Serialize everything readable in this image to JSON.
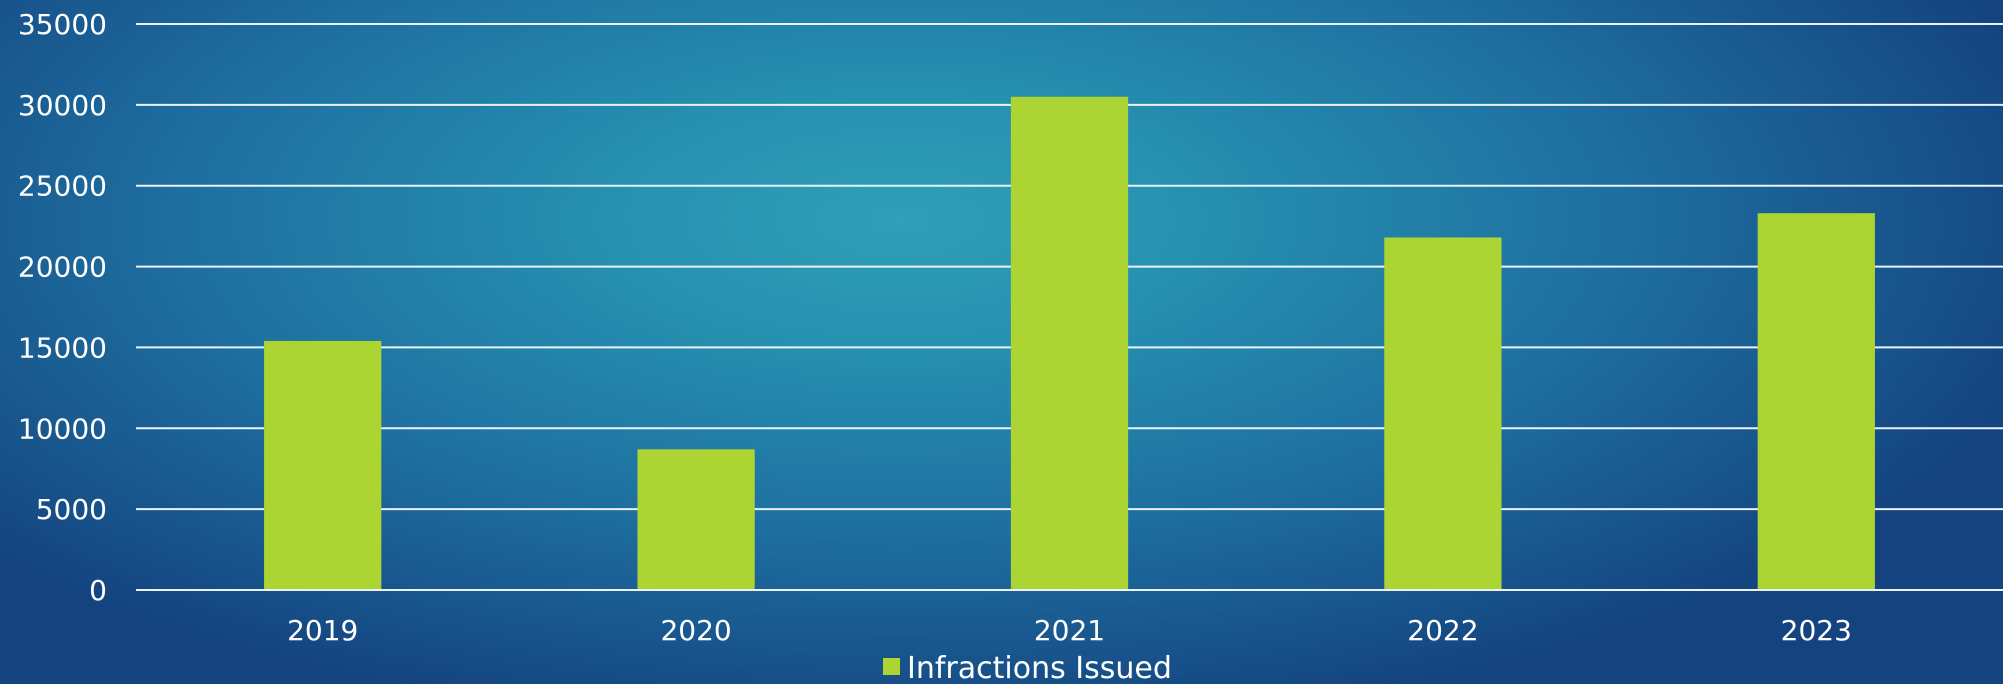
{
  "chart_data": {
    "type": "bar",
    "title": "",
    "xlabel": "",
    "ylabel": "",
    "categories": [
      "2019",
      "2020",
      "2021",
      "2022",
      "2023"
    ],
    "series": [
      {
        "name": "Infractions Issued",
        "values": [
          15400,
          8700,
          30500,
          21800,
          23300
        ],
        "color": "#acd433"
      }
    ],
    "ylim": [
      0,
      35000
    ],
    "yticks": [
      0,
      5000,
      10000,
      15000,
      20000,
      25000,
      30000,
      35000
    ],
    "grid": true,
    "legend_position": "bottom"
  },
  "colors": {
    "grid": "#e8f2f7",
    "text": "#ffffff"
  }
}
